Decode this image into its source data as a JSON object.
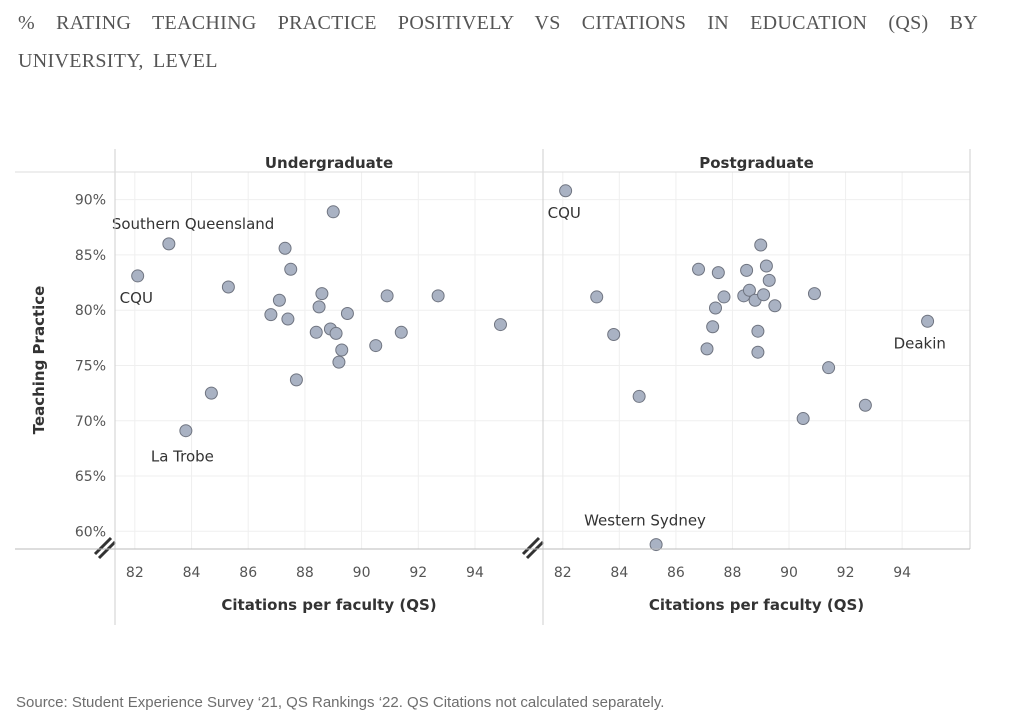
{
  "title": "% RATING TEACHING PRACTICE POSITIVELY VS CITATIONS IN EDUCATION (QS) BY UNIVERSITY, LEVEL",
  "source": "Source: Student Experience Survey ‘21, QS Rankings ‘22. QS Citations not calculated separately.",
  "chart_data": {
    "type": "scatter",
    "ylabel": "Teaching Practice",
    "xlabel": "Citations per faculty (QS)",
    "xlim": [
      81.3,
      96.4
    ],
    "ylim": [
      58.4,
      92.5
    ],
    "x_ticks": [
      82,
      84,
      86,
      88,
      90,
      92,
      94
    ],
    "x_tick_labels": [
      "82",
      "84",
      "86",
      "88",
      "90",
      "92",
      "94"
    ],
    "y_ticks": [
      60,
      65,
      70,
      75,
      80,
      85,
      90
    ],
    "y_tick_labels": [
      "60%",
      "65%",
      "70%",
      "75%",
      "80%",
      "85%",
      "90%"
    ],
    "grid": true,
    "marker_color": "#a9b2c3",
    "marker_edge": "#6f7480",
    "panels": [
      {
        "name": "Undergraduate",
        "points": [
          [
            82.1,
            83.1
          ],
          [
            83.2,
            86.0
          ],
          [
            83.8,
            69.1
          ],
          [
            84.7,
            72.5
          ],
          [
            85.3,
            82.1
          ],
          [
            86.8,
            79.6
          ],
          [
            87.1,
            80.9
          ],
          [
            87.3,
            85.6
          ],
          [
            87.4,
            79.2
          ],
          [
            87.5,
            83.7
          ],
          [
            87.7,
            73.7
          ],
          [
            88.4,
            78.0
          ],
          [
            88.5,
            80.3
          ],
          [
            88.6,
            81.5
          ],
          [
            88.9,
            78.3
          ],
          [
            89.0,
            88.9
          ],
          [
            89.1,
            77.9
          ],
          [
            89.2,
            75.3
          ],
          [
            89.3,
            76.4
          ],
          [
            89.5,
            79.7
          ],
          [
            90.5,
            76.8
          ],
          [
            90.9,
            81.3
          ],
          [
            91.4,
            78.0
          ],
          [
            92.7,
            81.3
          ],
          [
            94.9,
            78.7
          ]
        ],
        "annotations": [
          {
            "text": "Southern Queensland",
            "x": 83.2,
            "y": 86.0
          },
          {
            "text": "CQU",
            "x": 82.1,
            "y": 83.1
          },
          {
            "text": "La Trobe",
            "x": 83.8,
            "y": 69.1
          }
        ]
      },
      {
        "name": "Postgraduate",
        "points": [
          [
            82.1,
            90.8
          ],
          [
            83.2,
            81.2
          ],
          [
            83.8,
            77.8
          ],
          [
            84.7,
            72.2
          ],
          [
            85.3,
            58.8
          ],
          [
            86.8,
            83.7
          ],
          [
            87.1,
            76.5
          ],
          [
            87.3,
            78.5
          ],
          [
            87.4,
            80.2
          ],
          [
            87.5,
            83.4
          ],
          [
            87.7,
            81.2
          ],
          [
            88.4,
            81.3
          ],
          [
            88.5,
            83.6
          ],
          [
            88.6,
            81.8
          ],
          [
            88.8,
            80.9
          ],
          [
            88.9,
            76.2
          ],
          [
            88.9,
            78.1
          ],
          [
            89.0,
            85.9
          ],
          [
            89.1,
            81.4
          ],
          [
            89.2,
            84.0
          ],
          [
            89.3,
            82.7
          ],
          [
            89.5,
            80.4
          ],
          [
            90.5,
            70.2
          ],
          [
            90.9,
            81.5
          ],
          [
            91.4,
            74.8
          ],
          [
            92.7,
            71.4
          ],
          [
            94.9,
            79.0
          ]
        ],
        "annotations": [
          {
            "text": "CQU",
            "x": 82.1,
            "y": 90.8
          },
          {
            "text": "Western Sydney",
            "x": 85.3,
            "y": 58.8
          },
          {
            "text": "Deakin",
            "x": 94.9,
            "y": 79.0
          }
        ]
      }
    ]
  }
}
